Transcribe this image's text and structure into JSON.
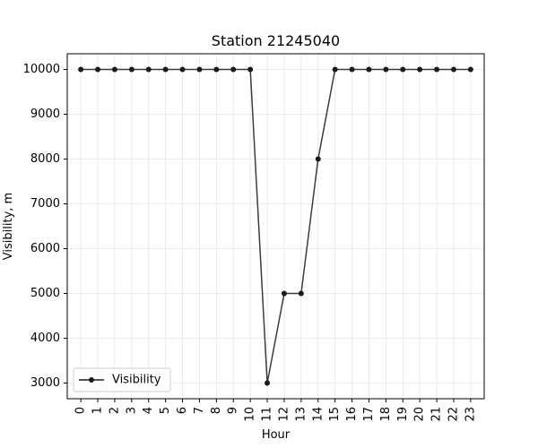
{
  "chart_data": {
    "type": "line",
    "title": "Station 21245040",
    "xlabel": "Hour",
    "ylabel": "Visibility, m",
    "x": [
      0,
      1,
      2,
      3,
      4,
      5,
      6,
      7,
      8,
      9,
      10,
      11,
      12,
      13,
      14,
      15,
      16,
      17,
      18,
      19,
      20,
      21,
      22,
      23
    ],
    "x_tick_labels": [
      "0",
      "1",
      "2",
      "3",
      "4",
      "5",
      "6",
      "7",
      "8",
      "9",
      "10",
      "11",
      "12",
      "13",
      "14",
      "15",
      "16",
      "17",
      "18",
      "19",
      "20",
      "21",
      "22",
      "23"
    ],
    "y_ticks": [
      3000,
      4000,
      5000,
      6000,
      7000,
      8000,
      9000,
      10000
    ],
    "y_tick_labels": [
      "3000",
      "4000",
      "5000",
      "6000",
      "7000",
      "8000",
      "9000",
      "10000"
    ],
    "ylim": [
      2650,
      10350
    ],
    "xlim": [
      -0.8,
      23.8
    ],
    "grid": true,
    "legend_position": "lower-left",
    "series": [
      {
        "name": "Visibility",
        "color": "#1a1a1a",
        "marker": "circle",
        "values": [
          10000,
          10000,
          10000,
          10000,
          10000,
          10000,
          10000,
          10000,
          10000,
          10000,
          10000,
          3000,
          5000,
          5000,
          8000,
          10000,
          10000,
          10000,
          10000,
          10000,
          10000,
          10000,
          10000,
          10000
        ]
      }
    ]
  }
}
